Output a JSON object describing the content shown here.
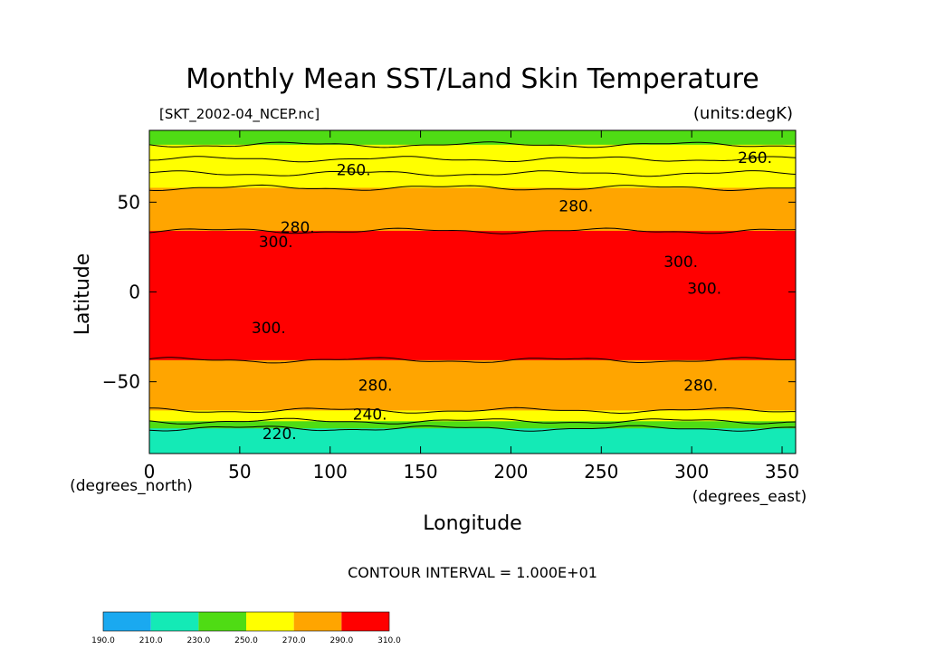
{
  "chart_data": {
    "type": "heatmap",
    "title": "Monthly Mean SST/Land Skin Temperature",
    "file_label": "[SKT_2002-04_NCEP.nc]",
    "units_label": "(units:degK)",
    "xlabel": "Longitude",
    "ylabel": "Latitude",
    "x_units": "(degrees_east)",
    "y_units": "(degrees_north)",
    "xlim": [
      0,
      357.5
    ],
    "ylim": [
      -90,
      90
    ],
    "x_ticks": [
      0,
      50,
      100,
      150,
      200,
      250,
      300,
      350
    ],
    "y_ticks": [
      50,
      0,
      -50
    ],
    "y_tick_labels": [
      "50",
      "0",
      "−50"
    ],
    "contour_interval_label": "CONTOUR INTERVAL = 1.000E+01",
    "colorbar": {
      "boundaries": [
        "190.0",
        "210.0",
        "230.0",
        "250.0",
        "270.0",
        "290.0",
        "310.0"
      ],
      "colors": [
        "#1aa9f0",
        "#14eab6",
        "#4fdc14",
        "#ffff00",
        "#ffa500",
        "#ff0000"
      ]
    },
    "zonal_bands": [
      {
        "lat_top": 90,
        "lat_bottom": 82,
        "value": "240"
      },
      {
        "lat_top": 82,
        "lat_bottom": 74,
        "value": "260"
      },
      {
        "lat_top": 74,
        "lat_bottom": 66,
        "value": "260"
      },
      {
        "lat_top": 66,
        "lat_bottom": 58,
        "value": "260"
      },
      {
        "lat_top": 58,
        "lat_bottom": 34,
        "value": "280"
      },
      {
        "lat_top": 34,
        "lat_bottom": -38,
        "value": "300"
      },
      {
        "lat_top": -38,
        "lat_bottom": -66,
        "value": "280"
      },
      {
        "lat_top": -66,
        "lat_bottom": -72,
        "value": "260"
      },
      {
        "lat_top": -72,
        "lat_bottom": -76,
        "value": "240"
      },
      {
        "lat_top": -76,
        "lat_bottom": -90,
        "value": "220"
      }
    ],
    "contour_labels": [
      {
        "lon": 113,
        "lat": 68,
        "text": "260."
      },
      {
        "lon": 335,
        "lat": 75,
        "text": "260."
      },
      {
        "lon": 236,
        "lat": 48,
        "text": "280."
      },
      {
        "lon": 82,
        "lat": 36,
        "text": "280."
      },
      {
        "lon": 70,
        "lat": 28,
        "text": "300."
      },
      {
        "lon": 294,
        "lat": 17,
        "text": "300."
      },
      {
        "lon": 307,
        "lat": 2,
        "text": "300."
      },
      {
        "lon": 66,
        "lat": -20,
        "text": "300."
      },
      {
        "lon": 125,
        "lat": -52,
        "text": "280."
      },
      {
        "lon": 305,
        "lat": -52,
        "text": "280."
      },
      {
        "lon": 122,
        "lat": -68,
        "text": "240."
      },
      {
        "lon": 72,
        "lat": -79,
        "text": "220."
      }
    ]
  }
}
